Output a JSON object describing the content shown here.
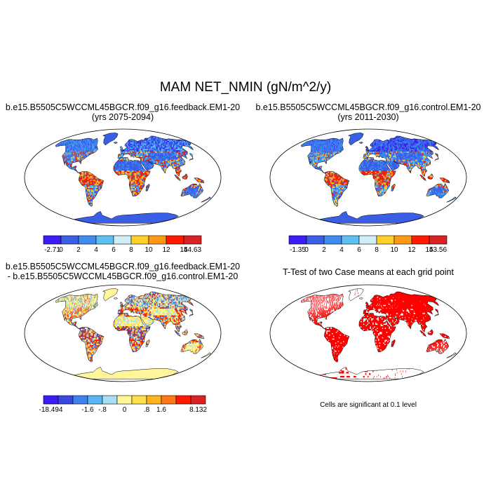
{
  "figure": {
    "title": "MAM NET_NMIN (gN/m^2/y)"
  },
  "panels": [
    {
      "id": "feedback",
      "title_lines": [
        "b.e15.B5505C5WCCML45BGCR.f09_g16.feedback.EM1-20",
        "(yrs 2075-2094)"
      ],
      "colorbar": {
        "labels": [
          "-2.71",
          "0",
          "2",
          "4",
          "6",
          "8",
          "10",
          "12",
          "14",
          "54.63"
        ],
        "colors": [
          "#3a1cf5",
          "#3a5fe6",
          "#3f8cf0",
          "#5ec0f2",
          "#cfeef5",
          "#ffd028",
          "#ff9914",
          "#ff1a00",
          "#d92222"
        ]
      }
    },
    {
      "id": "control",
      "title_lines": [
        "b.e15.B5505C5WCCML45BGCR.f09_g16.control.EM1-20",
        "(yrs 2011-2030)"
      ],
      "colorbar": {
        "labels": [
          "-1.35",
          "0",
          "2",
          "4",
          "6",
          "8",
          "10",
          "12",
          "14",
          "53.56"
        ],
        "colors": [
          "#3a1cf5",
          "#3a5fe6",
          "#3f8cf0",
          "#5ec0f2",
          "#cfeef5",
          "#ffd028",
          "#ff9914",
          "#ff1a00",
          "#d92222"
        ]
      }
    },
    {
      "id": "difference",
      "title_lines": [
        "b.e15.B5505C5WCCML45BGCR.f09_g16.feedback.EM1-20",
        "- b.e15.B5505C5WCCML45BGCR.f09_g16.control.EM1-20"
      ],
      "colorbar": {
        "labels": [
          "-18.494",
          "-1.6",
          "-.8",
          "0",
          ".8",
          "1.6",
          "8.132"
        ],
        "colors": [
          "#3a1cf5",
          "#3a48e0",
          "#3f7ff0",
          "#5ab6f2",
          "#a8def5",
          "#fff59a",
          "#ffe04a",
          "#ffb41e",
          "#ff7814",
          "#ff1a00",
          "#d92222"
        ]
      }
    },
    {
      "id": "ttest",
      "title_lines": [
        "T-Test of two Case means at each grid point"
      ],
      "note": "Cells are significant at 0.1 level",
      "significant_color": "#ff0000"
    }
  ]
}
